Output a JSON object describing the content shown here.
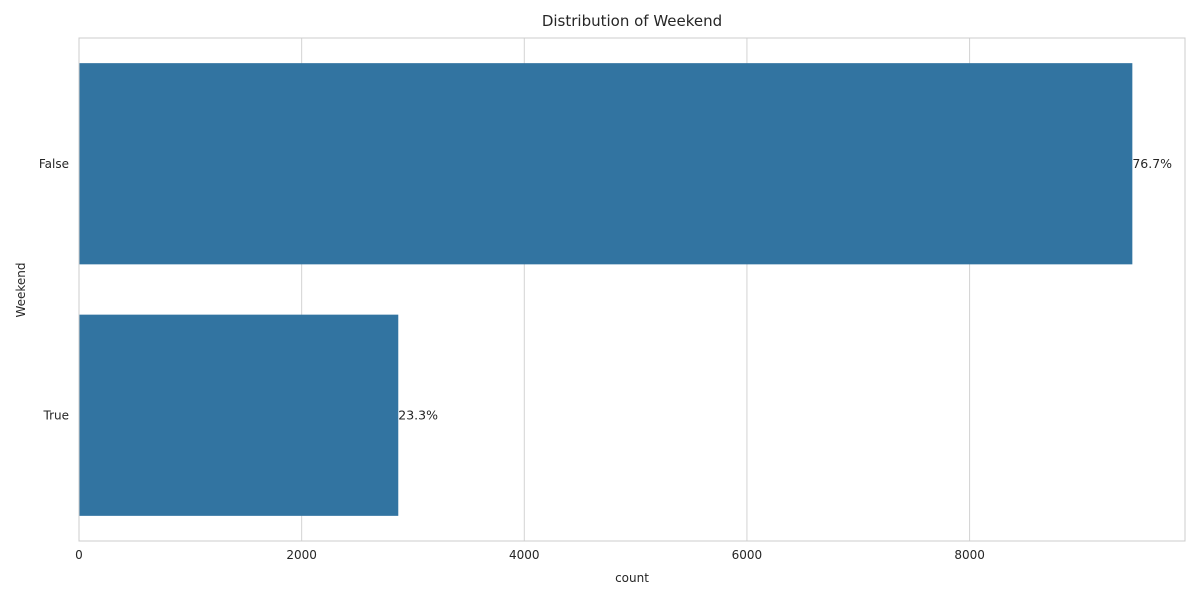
{
  "chart_data": {
    "type": "bar",
    "orientation": "horizontal",
    "title": "Distribution of Weekend",
    "xlabel": "count",
    "ylabel": "Weekend",
    "categories": [
      "False",
      "True"
    ],
    "values": [
      9462,
      2868
    ],
    "data_labels": [
      "76.7%",
      "23.3%"
    ],
    "xlim": [
      0,
      9935
    ],
    "xticks": [
      0,
      2000,
      4000,
      6000,
      8000
    ],
    "grid": true,
    "bar_color": "#3274a1"
  }
}
